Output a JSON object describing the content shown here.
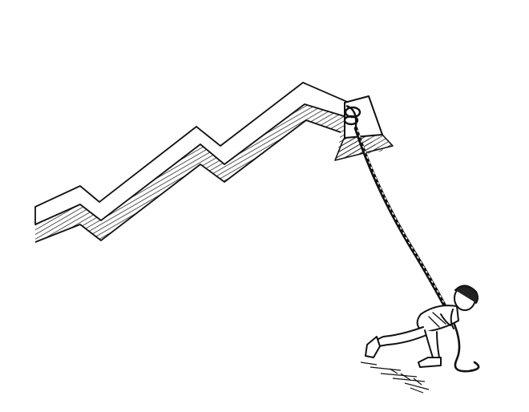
{
  "illustration": {
    "subject": "sketch-rising-arrow-pulled-by-person",
    "background_color": "#ffffff",
    "ink_color": "#111111"
  }
}
